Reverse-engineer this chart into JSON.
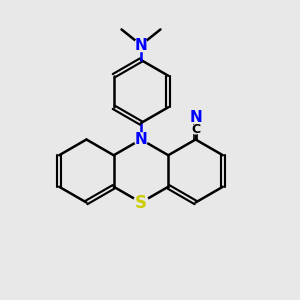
{
  "bg_color": "#e8e8e8",
  "bond_color": "#000000",
  "N_color": "#0000ff",
  "S_color": "#cccc00",
  "line_width": 1.8,
  "font_size": 10,
  "xlim": [
    0,
    10
  ],
  "ylim": [
    0,
    10
  ]
}
